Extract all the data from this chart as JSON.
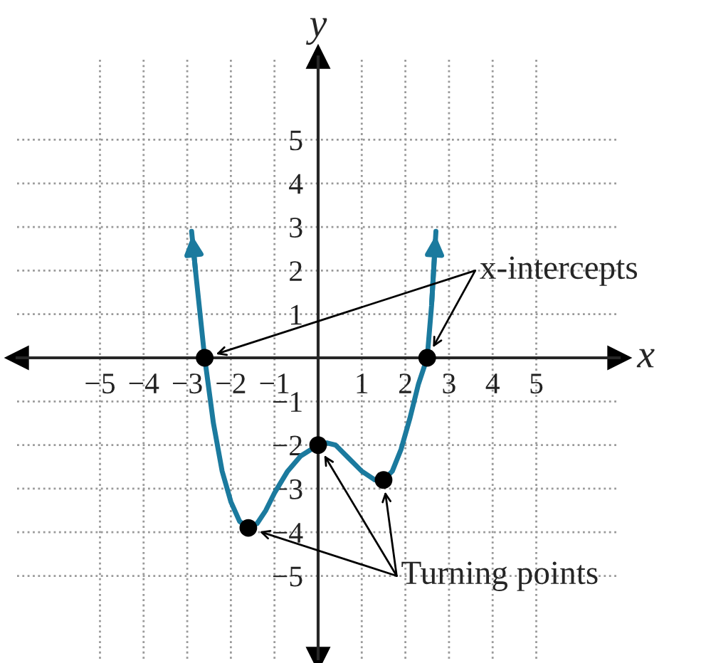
{
  "chart_data": {
    "type": "line",
    "xlabel": "x",
    "ylabel": "y",
    "xlim": [
      -6.9,
      6.9
    ],
    "ylim": [
      -6.9,
      6.9
    ],
    "xticks": [
      {
        "value": -5,
        "label": "−5"
      },
      {
        "value": -4,
        "label": "−4"
      },
      {
        "value": -3,
        "label": "−3"
      },
      {
        "value": -2,
        "label": "−2"
      },
      {
        "value": -1,
        "label": "−1"
      },
      1,
      2,
      3,
      4,
      5
    ],
    "yticks": [
      {
        "value": -5,
        "label": "−5"
      },
      {
        "value": -4,
        "label": "−4"
      },
      {
        "value": -3,
        "label": "−3"
      },
      {
        "value": -2,
        "label": "−2"
      },
      {
        "value": -1,
        "label": "−1"
      },
      1,
      2,
      3,
      4,
      5
    ],
    "grid": true,
    "series": [
      {
        "color": "#1b7a9e",
        "marker": "none",
        "line_style": "solid",
        "x": [
          -2.9,
          -2.8,
          -2.6,
          -2.4,
          -2.2,
          -2.0,
          -1.8,
          -1.6,
          -1.4,
          -1.2,
          -1.0,
          -0.7,
          -0.4,
          0.0,
          0.2,
          0.4,
          0.7,
          1.0,
          1.3,
          1.5,
          1.7,
          1.9,
          2.1,
          2.3,
          2.5,
          2.6,
          2.7
        ],
        "values": [
          2.9,
          1.9,
          0.0,
          -1.5,
          -2.6,
          -3.3,
          -3.75,
          -3.9,
          -3.8,
          -3.5,
          -3.1,
          -2.6,
          -2.25,
          -2.0,
          -1.95,
          -2.0,
          -2.3,
          -2.6,
          -2.8,
          -2.8,
          -2.6,
          -2.1,
          -1.4,
          -0.6,
          0.0,
          1.2,
          2.9
        ]
      },
      {
        "type": "scatter",
        "color": "#000000",
        "marker": "circle",
        "x": [
          -2.6,
          2.5
        ],
        "values": [
          0,
          0
        ]
      },
      {
        "type": "scatter",
        "color": "#000000",
        "marker": "circle",
        "x": [
          -1.6,
          0,
          1.5
        ],
        "values": [
          -3.9,
          -2,
          -2.8
        ]
      }
    ],
    "annotations": [
      {
        "text": "x-intercepts",
        "x": 2.5,
        "y": 0
      },
      {
        "text": "Turning points",
        "x": 1.5,
        "y": -2.8
      }
    ]
  }
}
